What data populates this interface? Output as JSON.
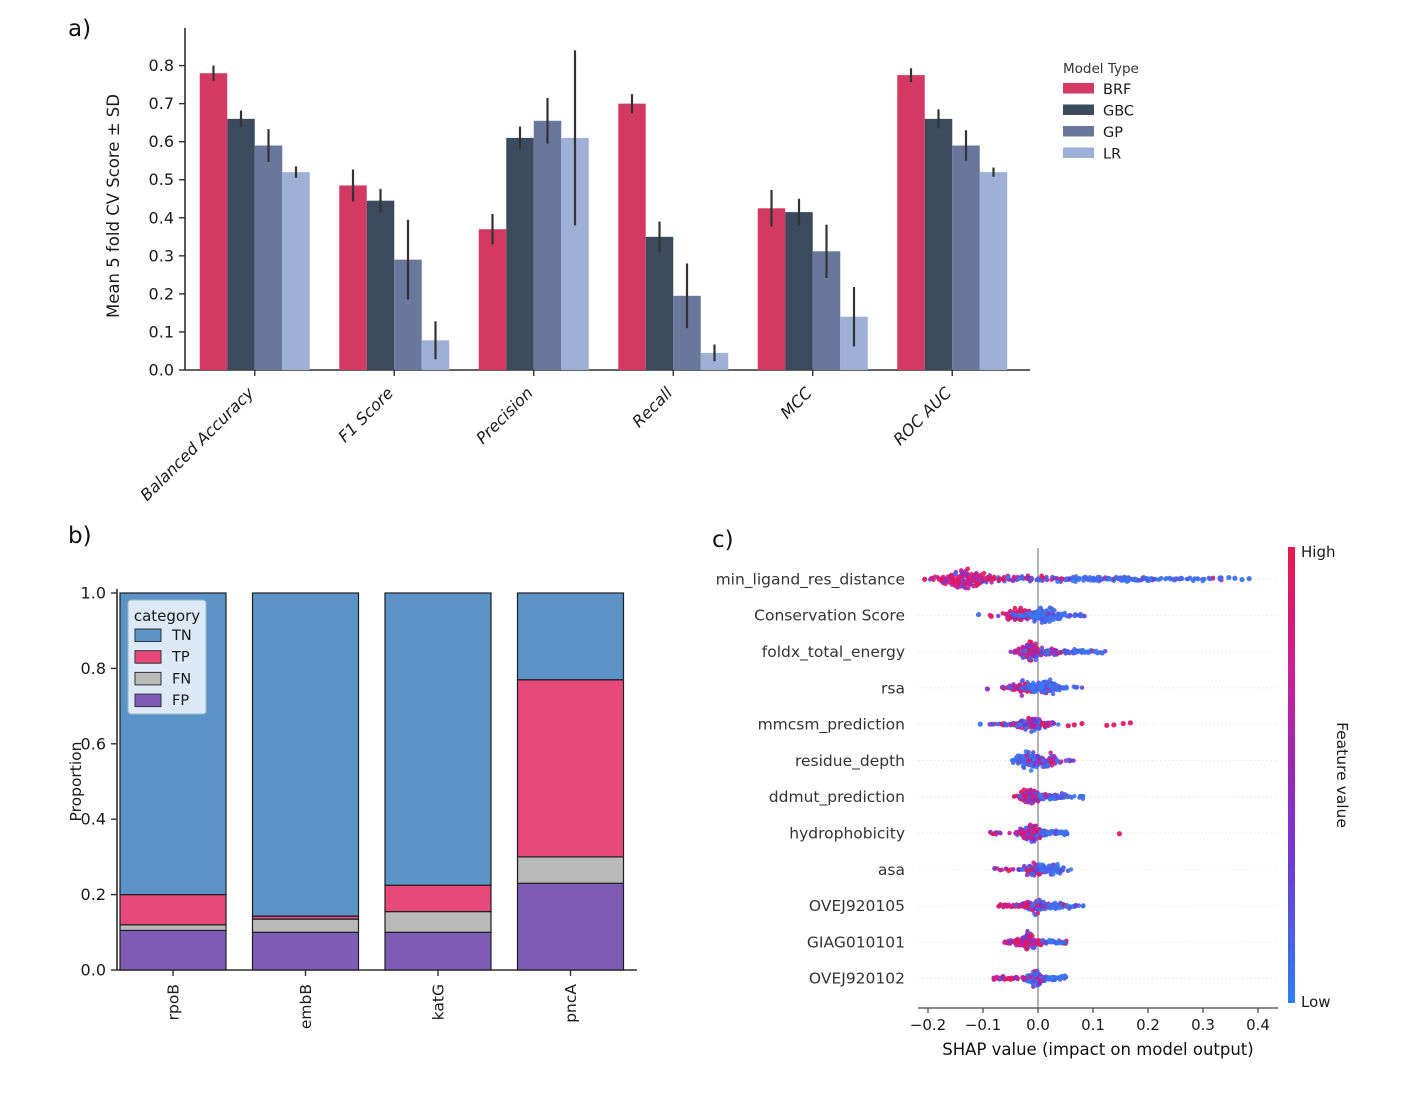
{
  "panels": {
    "a_label": "a)",
    "b_label": "b)",
    "c_label": "c)"
  },
  "colors": {
    "axis_line": "#2f2f2f",
    "axis_text": "#1a1a1a",
    "error_bar": "#333333",
    "shap_blue": "#2f7ff7",
    "shap_purple": "#8b2fc0",
    "shap_red": "#e8174f",
    "zero_line": "#8c8c8c",
    "gridline": "#e4e4e4",
    "legend_b_bg": "#dde9f6",
    "legend_b_border": "#98b4cc"
  },
  "chart_data": [
    {
      "id": "a",
      "type": "bar",
      "ylabel": "Mean 5 fold CV Score ± SD",
      "categories": [
        "Balanced Accuracy",
        "F1 Score",
        "Precision",
        "Recall",
        "MCC",
        "ROC AUC"
      ],
      "series": [
        {
          "name": "BRF",
          "color": "#d23a63",
          "values": [
            0.78,
            0.485,
            0.37,
            0.7,
            0.425,
            0.775
          ],
          "errors": [
            0.02,
            0.042,
            0.04,
            0.025,
            0.048,
            0.018
          ]
        },
        {
          "name": "GBC",
          "color": "#3c4a5d",
          "values": [
            0.66,
            0.445,
            0.61,
            0.35,
            0.415,
            0.66
          ],
          "errors": [
            0.022,
            0.031,
            0.03,
            0.04,
            0.035,
            0.025
          ]
        },
        {
          "name": "GP",
          "color": "#68779b",
          "values": [
            0.59,
            0.29,
            0.655,
            0.195,
            0.312,
            0.59
          ],
          "errors": [
            0.043,
            0.105,
            0.06,
            0.085,
            0.07,
            0.04
          ]
        },
        {
          "name": "LR",
          "color": "#9fb0d6",
          "values": [
            0.52,
            0.078,
            0.61,
            0.045,
            0.14,
            0.52
          ],
          "errors": [
            0.015,
            0.05,
            0.23,
            0.022,
            0.078,
            0.012
          ]
        }
      ],
      "ylim": [
        0,
        0.862
      ],
      "yticks": [
        0.0,
        0.1,
        0.2,
        0.3,
        0.4,
        0.5,
        0.6,
        0.7,
        0.8
      ],
      "legend_title": "Model Type",
      "legend_position": "right-top"
    },
    {
      "id": "b",
      "type": "stacked_bar",
      "ylabel": "Proportion",
      "categories": [
        "rpoB",
        "embB",
        "katG",
        "pncA"
      ],
      "series": [
        {
          "name": "FP",
          "color": "#7e5cb5",
          "values": [
            0.105,
            0.1,
            0.1,
            0.23
          ]
        },
        {
          "name": "FN",
          "color": "#b9b9b9",
          "values": [
            0.015,
            0.035,
            0.055,
            0.07
          ]
        },
        {
          "name": "TP",
          "color": "#e8487c",
          "values": [
            0.08,
            0.008,
            0.07,
            0.47
          ]
        },
        {
          "name": "TN",
          "color": "#5b93c6",
          "values": [
            0.8,
            0.857,
            0.775,
            0.23
          ]
        }
      ],
      "legend_title": "category",
      "legend_order": [
        "TN",
        "TP",
        "FN",
        "FP"
      ],
      "ylim": [
        0,
        1.0
      ],
      "yticks": [
        0.0,
        0.2,
        0.4,
        0.6,
        0.8,
        1.0
      ]
    },
    {
      "id": "c",
      "type": "beeswarm",
      "xlabel": "SHAP value (impact on model output)",
      "xticks": [
        -0.2,
        -0.1,
        0.0,
        0.1,
        0.2,
        0.3,
        0.4
      ],
      "xlim": [
        -0.225,
        0.435
      ],
      "colorbar": {
        "label": "Feature value",
        "high": "High",
        "low": "Low"
      },
      "features": [
        {
          "label": "min_ligand_res_distance",
          "clusters": [
            {
              "c": -0.132,
              "s": 0.027,
              "n": 170,
              "j": 13,
              "m": "high"
            },
            {
              "a": -0.075,
              "b": 0.05,
              "n": 60,
              "j": 4,
              "m": "mix"
            },
            {
              "a": 0.05,
              "b": 0.21,
              "n": 110,
              "j": 3.2,
              "m": "low"
            },
            {
              "a": 0.21,
              "b": 0.335,
              "n": 40,
              "j": 2.4,
              "m": "low"
            }
          ],
          "outliers": [
            {
              "x": -0.206,
              "m": "high"
            },
            {
              "x": 0.347,
              "m": "low"
            },
            {
              "x": 0.358,
              "m": "low"
            },
            {
              "x": 0.371,
              "m": "low"
            },
            {
              "x": 0.384,
              "m": "low"
            }
          ]
        },
        {
          "label": "Conservation Score",
          "clusters": [
            {
              "c": -0.034,
              "s": 0.017,
              "n": 90,
              "j": 10,
              "m": "high"
            },
            {
              "c": 0.013,
              "s": 0.02,
              "n": 120,
              "j": 11,
              "m": "low"
            },
            {
              "a": 0.055,
              "b": 0.085,
              "n": 12,
              "j": 1.8,
              "m": "low"
            }
          ],
          "outliers": [
            {
              "x": -0.108,
              "m": "low"
            },
            {
              "x": -0.085,
              "m": "high"
            }
          ]
        },
        {
          "label": "foldx_total_energy",
          "clusters": [
            {
              "c": -0.014,
              "s": 0.012,
              "n": 140,
              "j": 13,
              "m": "high"
            },
            {
              "a": 0.0,
              "b": 0.045,
              "n": 55,
              "j": 4.5,
              "m": "mix"
            },
            {
              "a": 0.045,
              "b": 0.125,
              "n": 40,
              "j": 2.8,
              "m": "low"
            }
          ],
          "outliers": []
        },
        {
          "label": "rsa",
          "clusters": [
            {
              "c": -0.028,
              "s": 0.016,
              "n": 85,
              "j": 10,
              "m": "high"
            },
            {
              "c": 0.012,
              "s": 0.017,
              "n": 115,
              "j": 11,
              "m": "low"
            },
            {
              "a": 0.05,
              "b": 0.085,
              "n": 8,
              "j": 1.5,
              "m": "low"
            }
          ],
          "outliers": [
            {
              "x": -0.092,
              "m": "hp"
            }
          ]
        },
        {
          "label": "mmcsm_prediction",
          "clusters": [
            {
              "c": -0.008,
              "s": 0.018,
              "n": 120,
              "j": 10,
              "m": "mix"
            },
            {
              "a": -0.07,
              "b": -0.025,
              "n": 26,
              "j": 2.4,
              "m": "mix"
            },
            {
              "a": -0.092,
              "b": -0.072,
              "n": 6,
              "j": 1.5,
              "m": "high"
            }
          ],
          "outliers": [
            {
              "x": -0.105,
              "m": "low"
            },
            {
              "x": 0.055,
              "m": "high"
            },
            {
              "x": 0.066,
              "m": "high"
            },
            {
              "x": 0.08,
              "m": "high"
            },
            {
              "x": 0.125,
              "m": "high"
            },
            {
              "x": 0.138,
              "m": "high"
            },
            {
              "x": 0.155,
              "m": "high"
            },
            {
              "x": 0.168,
              "m": "high"
            }
          ]
        },
        {
          "label": "residue_depth",
          "clusters": [
            {
              "c": -0.018,
              "s": 0.015,
              "n": 120,
              "j": 12,
              "m": "low"
            },
            {
              "c": 0.015,
              "s": 0.014,
              "n": 75,
              "j": 9,
              "m": "mix"
            },
            {
              "a": 0.045,
              "b": 0.062,
              "n": 6,
              "j": 1.5,
              "m": "mix"
            }
          ],
          "outliers": []
        },
        {
          "label": "ddmut_prediction",
          "clusters": [
            {
              "c": -0.014,
              "s": 0.012,
              "n": 130,
              "j": 12,
              "m": "high"
            },
            {
              "a": 0.002,
              "b": 0.05,
              "n": 55,
              "j": 4,
              "m": "low"
            },
            {
              "a": 0.05,
              "b": 0.082,
              "n": 12,
              "j": 2,
              "m": "low"
            }
          ],
          "outliers": []
        },
        {
          "label": "hydrophobicity",
          "clusters": [
            {
              "c": -0.012,
              "s": 0.013,
              "n": 130,
              "j": 12,
              "m": "hp"
            },
            {
              "a": 0.004,
              "b": 0.055,
              "n": 45,
              "j": 3.5,
              "m": "low"
            },
            {
              "a": -0.09,
              "b": -0.05,
              "n": 12,
              "j": 2,
              "m": "high"
            }
          ],
          "outliers": [
            {
              "x": 0.148,
              "m": "high"
            }
          ]
        },
        {
          "label": "asa",
          "clusters": [
            {
              "c": -0.006,
              "s": 0.013,
              "n": 105,
              "j": 10,
              "m": "mix"
            },
            {
              "c": 0.028,
              "s": 0.014,
              "n": 60,
              "j": 7,
              "m": "low"
            },
            {
              "a": -0.082,
              "b": -0.05,
              "n": 9,
              "j": 1.8,
              "m": "high"
            }
          ],
          "outliers": []
        },
        {
          "label": "OVEJ920105",
          "clusters": [
            {
              "c": -0.004,
              "s": 0.012,
              "n": 95,
              "j": 11,
              "m": "mix"
            },
            {
              "a": -0.072,
              "b": -0.018,
              "n": 40,
              "j": 2.4,
              "m": "high"
            },
            {
              "a": 0.012,
              "b": 0.062,
              "n": 55,
              "j": 3.6,
              "m": "low"
            },
            {
              "a": 0.062,
              "b": 0.088,
              "n": 9,
              "j": 1.8,
              "m": "low"
            }
          ],
          "outliers": []
        },
        {
          "label": "GIAG010101",
          "clusters": [
            {
              "c": -0.018,
              "s": 0.014,
              "n": 125,
              "j": 12,
              "m": "hp"
            },
            {
              "a": -0.062,
              "b": -0.032,
              "n": 16,
              "j": 2.4,
              "m": "high"
            },
            {
              "a": 0.008,
              "b": 0.052,
              "n": 35,
              "j": 3,
              "m": "low"
            }
          ],
          "outliers": []
        },
        {
          "label": "OVEJ920102",
          "clusters": [
            {
              "c": -0.004,
              "s": 0.011,
              "n": 105,
              "j": 11,
              "m": "mix"
            },
            {
              "a": -0.082,
              "b": -0.022,
              "n": 40,
              "j": 2.4,
              "m": "high"
            },
            {
              "a": 0.006,
              "b": 0.052,
              "n": 40,
              "j": 3.2,
              "m": "low"
            }
          ],
          "outliers": []
        }
      ]
    }
  ]
}
